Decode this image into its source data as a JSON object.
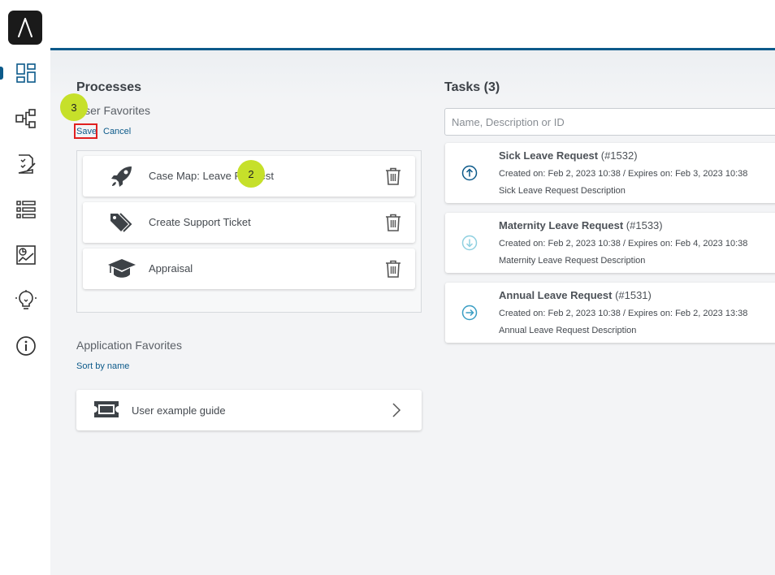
{
  "colors": {
    "brand": "#0c5a8a",
    "highlight": "#c6e02a",
    "save_outline": "#e02020"
  },
  "sidebar": {
    "items": [
      {
        "name": "dashboard-icon",
        "active": true
      },
      {
        "name": "process-map-icon"
      },
      {
        "name": "task-checklist-icon"
      },
      {
        "name": "list-icon"
      },
      {
        "name": "report-chart-icon"
      },
      {
        "name": "lightbulb-icon"
      },
      {
        "name": "info-icon"
      }
    ]
  },
  "processes": {
    "title": "Processes",
    "user_favorites_label": "User Favorites",
    "save_label": "Save",
    "cancel_label": "Cancel",
    "favorites": [
      {
        "label": "Case Map: Leave Request",
        "icon": "rocket-icon"
      },
      {
        "label": "Create Support Ticket",
        "icon": "tags-icon"
      },
      {
        "label": "Appraisal",
        "icon": "graduation-cap-icon"
      }
    ],
    "application_favorites_label": "Application Favorites",
    "sort_label": "Sort by name",
    "app_items": [
      {
        "label": "User example guide",
        "icon": "ticket-icon"
      }
    ]
  },
  "badges": {
    "step2": "2",
    "step3": "3"
  },
  "tasks": {
    "title": "Tasks (3)",
    "search_placeholder": "Name, Description or ID",
    "items": [
      {
        "name": "Sick Leave Request",
        "id": "(#1532)",
        "dates": "Created on: Feb 2, 2023 10:38 / Expires on: Feb 3, 2023 10:38",
        "description": "Sick Leave Request Description",
        "priority_icon": "arrow-up-circle-icon"
      },
      {
        "name": "Maternity Leave Request",
        "id": "(#1533)",
        "dates": "Created on: Feb 2, 2023 10:38 / Expires on: Feb 4, 2023 10:38",
        "description": "Maternity Leave Request Description",
        "priority_icon": "arrow-down-circle-icon"
      },
      {
        "name": "Annual Leave Request",
        "id": "(#1531)",
        "dates": "Created on: Feb 2, 2023 10:38 / Expires on: Feb 2, 2023 13:38",
        "description": "Annual Leave Request Description",
        "priority_icon": "arrow-right-circle-icon"
      }
    ]
  }
}
